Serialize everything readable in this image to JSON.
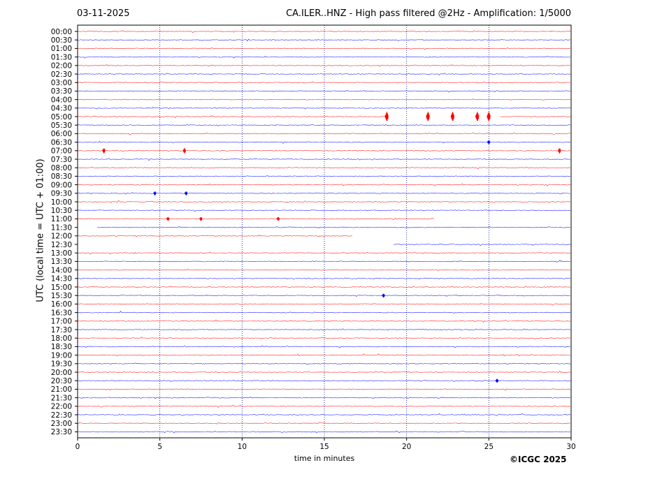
{
  "header": {
    "date": "03-11-2025",
    "title": "CA.ILER..HNZ - High pass filtered @2Hz - Amplification: 1/5000"
  },
  "footer": {
    "copyright": "©ICGC 2025"
  },
  "colors": {
    "trace_a": "#ff0000",
    "trace_b": "#0000ff",
    "axis": "#000000",
    "grid": "#000080"
  },
  "chart_data": {
    "type": "line",
    "subtype": "helicorder",
    "xlabel": "time in minutes",
    "ylabel": "UTC (local time = UTC + 01:00)",
    "xlim": [
      0,
      30
    ],
    "x_ticks": [
      0,
      5,
      10,
      15,
      20,
      25,
      30
    ],
    "vertical_gridlines": [
      5,
      10,
      15,
      20,
      25
    ],
    "grid": "vertical dotted",
    "rows": [
      "00:00",
      "00:30",
      "01:00",
      "01:30",
      "02:00",
      "02:30",
      "03:00",
      "03:30",
      "04:00",
      "04:30",
      "05:00",
      "05:30",
      "06:00",
      "06:30",
      "07:00",
      "07:30",
      "08:00",
      "08:30",
      "09:00",
      "09:30",
      "10:00",
      "10:30",
      "11:00",
      "11:30",
      "12:00",
      "12:30",
      "13:00",
      "13:30",
      "14:00",
      "14:30",
      "15:00",
      "15:30",
      "16:00",
      "16:30",
      "17:00",
      "17:30",
      "18:00",
      "18:30",
      "19:00",
      "19:30",
      "20:00",
      "20:30",
      "21:00",
      "21:30",
      "22:00",
      "22:30",
      "23:00",
      "23:30"
    ],
    "row_colors": "alternating red/blue starting red at 00:00",
    "data_gaps": [
      {
        "row": "05:00",
        "from_min": 18.8,
        "to_min": 25.7
      },
      {
        "row": "11:00",
        "from_min": 21.7,
        "to_min": 30
      },
      {
        "row": "11:30",
        "from_min": 0,
        "to_min": 1.2
      },
      {
        "row": "12:00",
        "from_min": 16.7,
        "to_min": 30
      },
      {
        "row": "12:30",
        "from_min": 0,
        "to_min": 19.2
      }
    ],
    "events": [
      {
        "row": "05:00",
        "minutes": [
          18.8,
          21.3,
          22.8,
          24.3,
          25.0
        ],
        "amplitude": "large"
      },
      {
        "row": "07:00",
        "minutes": [
          1.6,
          6.5,
          29.3
        ],
        "amplitude": "medium"
      },
      {
        "row": "06:30",
        "minutes": [
          25.0
        ],
        "amplitude": "small"
      },
      {
        "row": "09:30",
        "minutes": [
          4.7,
          6.6
        ],
        "amplitude": "small"
      },
      {
        "row": "11:00",
        "minutes": [
          5.5,
          7.5,
          12.2
        ],
        "amplitude": "small"
      },
      {
        "row": "20:30",
        "minutes": [
          25.5
        ],
        "amplitude": "small"
      },
      {
        "row": "15:30",
        "minutes": [
          18.6
        ],
        "amplitude": "small"
      }
    ]
  }
}
